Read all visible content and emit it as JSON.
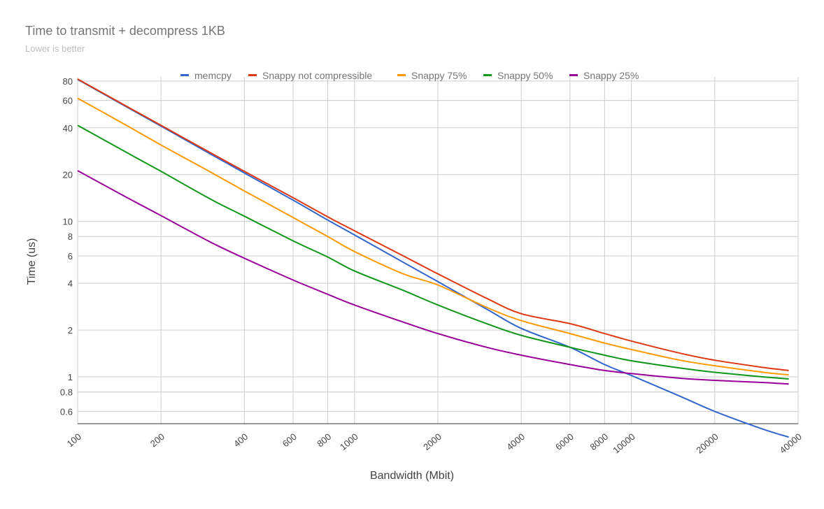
{
  "chart_data": {
    "type": "line",
    "title": "Time to transmit + decompress 1KB",
    "subtitle": "Lower is better",
    "xlabel": "Bandwidth (Mbit)",
    "ylabel": "Time (us)",
    "x_scale": "log",
    "y_scale": "log",
    "xlim": [
      100,
      40000
    ],
    "ylim": [
      0.5,
      85
    ],
    "x_ticks": [
      100,
      200,
      400,
      600,
      800,
      1000,
      2000,
      4000,
      6000,
      8000,
      10000,
      20000,
      40000
    ],
    "x_tick_labels": [
      "100",
      "200",
      "400",
      "600",
      "800",
      "1000",
      "2000",
      "4000",
      "6000",
      "8000",
      "10000",
      "20000",
      "40000"
    ],
    "y_ticks": [
      0.6,
      0.8,
      1,
      2,
      4,
      6,
      8,
      10,
      20,
      40,
      60,
      80
    ],
    "y_tick_labels": [
      "0.6",
      "0.8",
      "1",
      "2",
      "4",
      "6",
      "8",
      "10",
      "20",
      "40",
      "60",
      "80"
    ],
    "grid": true,
    "legend_position": "top",
    "x": [
      100,
      150,
      200,
      300,
      400,
      600,
      800,
      1000,
      1500,
      2000,
      3000,
      4000,
      6000,
      8000,
      10000,
      15000,
      20000,
      30000,
      37000
    ],
    "series": [
      {
        "name": "memcpy",
        "color": "#3366cc",
        "values": [
          81.9,
          54.6,
          41.0,
          27.3,
          20.5,
          13.7,
          10.2,
          8.19,
          5.46,
          4.1,
          2.73,
          2.05,
          1.55,
          1.2,
          1.02,
          0.75,
          0.6,
          0.46,
          0.41
        ]
      },
      {
        "name": "Snappy not compressible",
        "color": "#dc3912",
        "values": [
          82.4,
          55.1,
          41.5,
          27.8,
          21.0,
          14.2,
          10.7,
          8.7,
          6.0,
          4.6,
          3.2,
          2.55,
          2.2,
          1.9,
          1.7,
          1.42,
          1.28,
          1.15,
          1.1
        ]
      },
      {
        "name": "Snappy 75%",
        "color": "#ff9900",
        "values": [
          62.0,
          41.5,
          31.0,
          20.9,
          15.7,
          10.6,
          8.0,
          6.4,
          4.6,
          3.9,
          2.8,
          2.3,
          1.9,
          1.65,
          1.5,
          1.28,
          1.18,
          1.07,
          1.03
        ]
      },
      {
        "name": "Snappy 50%",
        "color": "#109618",
        "values": [
          41.5,
          27.8,
          21.0,
          14.0,
          10.8,
          7.5,
          5.9,
          4.8,
          3.6,
          2.9,
          2.2,
          1.85,
          1.55,
          1.38,
          1.27,
          1.14,
          1.07,
          1.0,
          0.97
        ]
      },
      {
        "name": "Snappy 25%",
        "color": "#990099",
        "values": [
          21.2,
          14.3,
          10.9,
          7.4,
          5.8,
          4.2,
          3.4,
          2.9,
          2.25,
          1.9,
          1.55,
          1.38,
          1.2,
          1.1,
          1.05,
          0.98,
          0.95,
          0.92,
          0.9
        ]
      }
    ]
  }
}
